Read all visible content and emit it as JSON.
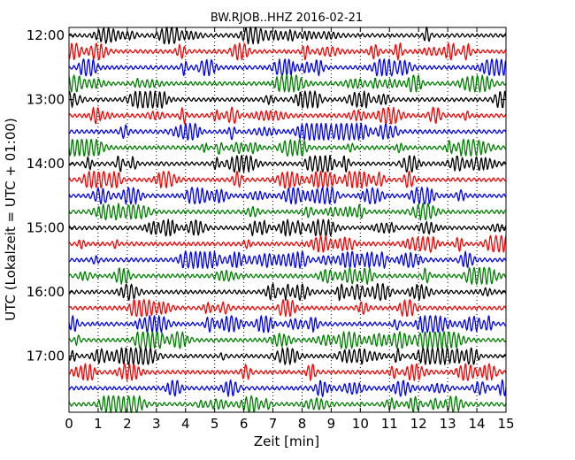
{
  "chart_data": {
    "type": "line",
    "title": "BW.RJOB..HHZ 2016-02-21",
    "xlabel": "Zeit  [min]",
    "ylabel": "UTC (Lokalzeit = UTC + 01:00)",
    "xlim": [
      0,
      15
    ],
    "x_ticks": [
      "0",
      "1",
      "2",
      "3",
      "4",
      "5",
      "6",
      "7",
      "8",
      "9",
      "10",
      "11",
      "12",
      "13",
      "14",
      "15"
    ],
    "y_tick_labels": [
      "12:00",
      "13:00",
      "14:00",
      "15:00",
      "16:00",
      "17:00"
    ],
    "traces_per_hour": 4,
    "trace_start_times": [
      "12:00",
      "12:15",
      "12:30",
      "12:45",
      "13:00",
      "13:15",
      "13:30",
      "13:45",
      "14:00",
      "14:15",
      "14:30",
      "14:45",
      "15:00",
      "15:15",
      "15:30",
      "15:45",
      "16:00",
      "16:15",
      "16:30",
      "16:45",
      "17:00",
      "17:15",
      "17:30",
      "17:45"
    ],
    "trace_colors": [
      "#000000",
      "#ff0000",
      "#0000ff",
      "#008000"
    ],
    "grid": "vertical dotted at each minute",
    "legend": "none"
  }
}
